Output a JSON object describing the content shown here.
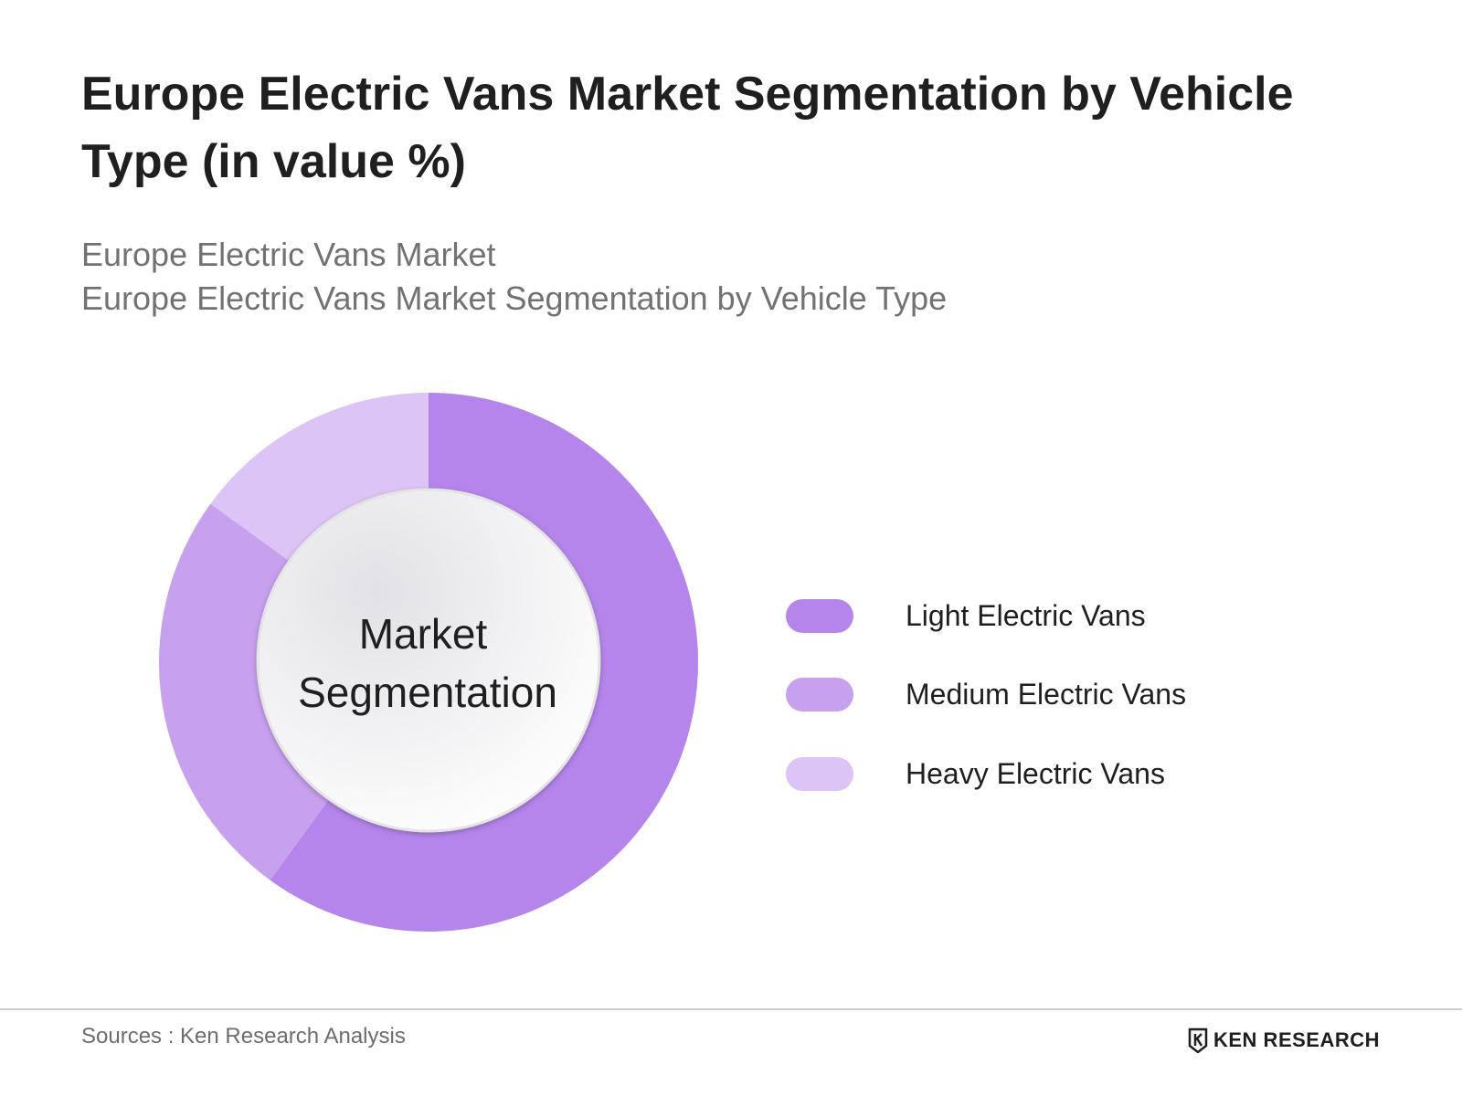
{
  "header": {
    "title": "Europe Electric Vans Market Segmentation by Vehicle Type (in value %)",
    "subtitle_line1": "Europe Electric Vans Market",
    "subtitle_line2": "Europe Electric Vans Market Segmentation by Vehicle Type"
  },
  "chart_data": {
    "type": "pie",
    "donut": true,
    "center_label_line1": "Market",
    "center_label_line2": "Segmentation",
    "categories": [
      "Light Electric Vans",
      "Medium Electric Vans",
      "Heavy Electric Vans"
    ],
    "values": [
      60,
      25,
      15
    ],
    "colors": [
      "#b585eb",
      "#c7a0ee",
      "#dcc4f6"
    ],
    "legend_position": "right"
  },
  "footer": {
    "source": "Sources : Ken Research Analysis",
    "brand": "KEN RESEARCH"
  }
}
